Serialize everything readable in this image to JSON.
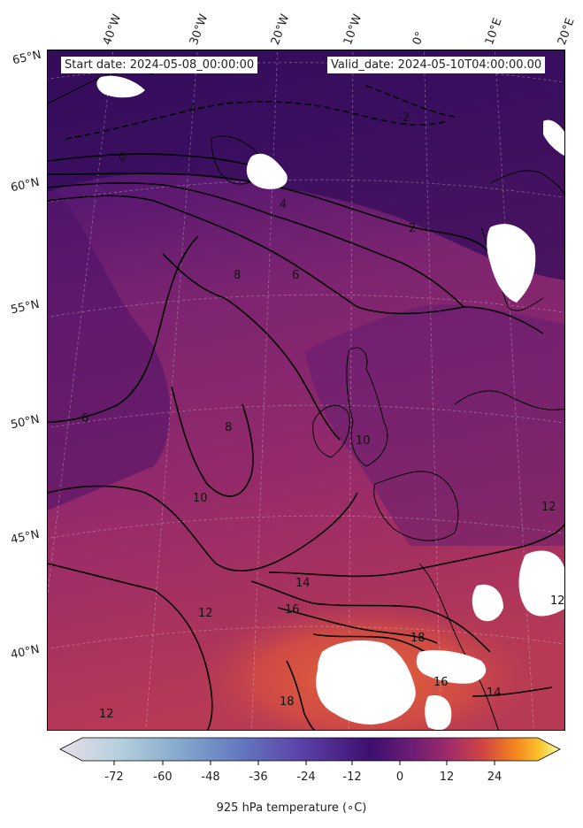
{
  "header": {
    "start_date": "Start date: 2024-05-08_00:00:00",
    "valid_date": "Valid_date: 2024-05-10T04:00:00.00"
  },
  "longitude_labels": [
    "40°W",
    "30°W",
    "20°W",
    "10°W",
    "0°",
    "10°E",
    "20°E"
  ],
  "latitude_labels": [
    "65°N",
    "60°N",
    "55°N",
    "50°N",
    "45°N",
    "40°N"
  ],
  "contour_labels": [
    "0",
    "2",
    "4",
    "6",
    "8",
    "10",
    "12",
    "14",
    "16",
    "18",
    "-2",
    "-4"
  ],
  "colorbar": {
    "label": "925 hPa temperature (∘C)",
    "ticks": [
      "-72",
      "-60",
      "-48",
      "-36",
      "-24",
      "-12",
      "0",
      "12",
      "24"
    ],
    "min": -84,
    "max": 36,
    "colors": [
      "#e6dfe8",
      "#a9c6d6",
      "#7a9ec6",
      "#5f6bbb",
      "#5a3a9e",
      "#3d0f6e",
      "#5a1774",
      "#9b2a6a",
      "#cf4446",
      "#f2831d",
      "#fbc12d",
      "#fcffa4"
    ]
  },
  "field_colors": {
    "cold_north": "#3b1063",
    "ocean_mid": "#6a1f6e",
    "warm_mid": "#8e2a6c",
    "warm_south": "#b23a5c",
    "hot_med": "#d8533e",
    "missing": "#ffffff"
  }
}
